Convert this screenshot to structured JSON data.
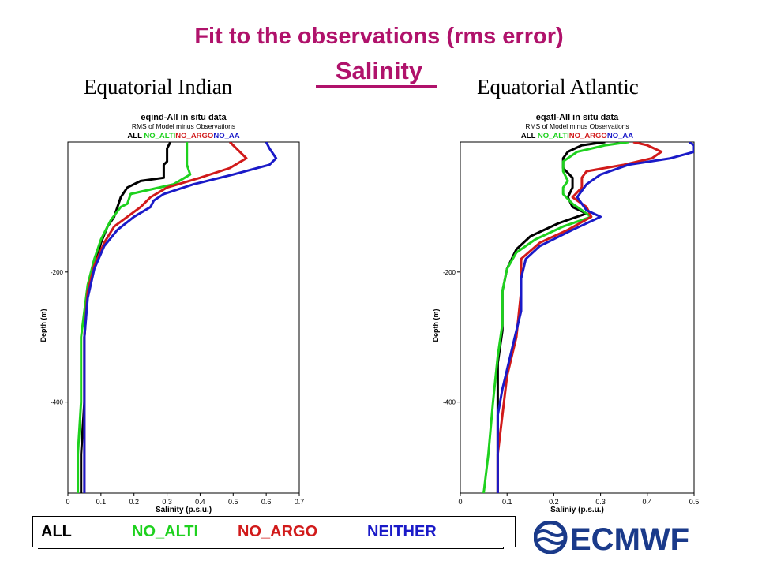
{
  "slide": {
    "title": "Fit to the observations (rms error)",
    "subtitle": "Salinity",
    "panel_titles": [
      "Equatorial Indian",
      "Equatorial Atlantic"
    ]
  },
  "legend": {
    "items": [
      {
        "label": "ALL",
        "color": "#000000"
      },
      {
        "label": "NO_ALTI",
        "color": "#1ed11e"
      },
      {
        "label": "NO_ARGO",
        "color": "#d11a1a"
      },
      {
        "label": "NEITHER",
        "color": "#1a1ac8"
      }
    ]
  },
  "logo": {
    "text": "ECMWF",
    "color": "#1a3a8a"
  },
  "colors": {
    "title": "#b0126b",
    "ALL": "#000000",
    "NO_ALTI": "#1ed11e",
    "NO_ARGO": "#d11a1a",
    "NO_AA": "#1a1ac8"
  },
  "chart_data": [
    {
      "type": "line",
      "title": "eqind-All in situ data",
      "subtitle": "RMS of Model minus Observations",
      "xlabel": "Salinity (p.s.u.)",
      "ylabel": "Depth (m)",
      "xlim": [
        0,
        0.7
      ],
      "ylim": [
        -540,
        0
      ],
      "xticks": [
        0,
        0.1,
        0.2,
        0.3,
        0.4,
        0.5,
        0.6,
        0.7
      ],
      "yticks": [
        -200,
        -400
      ],
      "legend_inline": [
        "ALL",
        "NO_ALTI",
        "NO_ARGO",
        "NO_AA"
      ],
      "series": [
        {
          "name": "ALL",
          "color": "#000000",
          "points": [
            [
              0.31,
              0
            ],
            [
              0.3,
              -10
            ],
            [
              0.3,
              -30
            ],
            [
              0.29,
              -35
            ],
            [
              0.29,
              -55
            ],
            [
              0.22,
              -60
            ],
            [
              0.18,
              -70
            ],
            [
              0.16,
              -85
            ],
            [
              0.15,
              -100
            ],
            [
              0.14,
              -115
            ],
            [
              0.12,
              -130
            ],
            [
              0.1,
              -155
            ],
            [
              0.08,
              -190
            ],
            [
              0.06,
              -230
            ],
            [
              0.05,
              -300
            ],
            [
              0.05,
              -400
            ],
            [
              0.04,
              -480
            ],
            [
              0.04,
              -540
            ]
          ]
        },
        {
          "name": "NO_ALTI",
          "color": "#1ed11e",
          "points": [
            [
              0.36,
              0
            ],
            [
              0.36,
              -10
            ],
            [
              0.36,
              -35
            ],
            [
              0.37,
              -50
            ],
            [
              0.32,
              -65
            ],
            [
              0.19,
              -80
            ],
            [
              0.18,
              -95
            ],
            [
              0.16,
              -100
            ],
            [
              0.13,
              -120
            ],
            [
              0.1,
              -150
            ],
            [
              0.08,
              -180
            ],
            [
              0.06,
              -220
            ],
            [
              0.04,
              -300
            ],
            [
              0.04,
              -400
            ],
            [
              0.03,
              -480
            ],
            [
              0.03,
              -540
            ]
          ]
        },
        {
          "name": "NO_ARGO",
          "color": "#d11a1a",
          "points": [
            [
              0.49,
              0
            ],
            [
              0.52,
              -15
            ],
            [
              0.54,
              -25
            ],
            [
              0.49,
              -40
            ],
            [
              0.4,
              -55
            ],
            [
              0.3,
              -70
            ],
            [
              0.25,
              -85
            ],
            [
              0.23,
              -95
            ],
            [
              0.22,
              -100
            ],
            [
              0.18,
              -115
            ],
            [
              0.14,
              -130
            ],
            [
              0.11,
              -155
            ],
            [
              0.08,
              -190
            ],
            [
              0.06,
              -230
            ],
            [
              0.05,
              -300
            ],
            [
              0.05,
              -400
            ],
            [
              0.05,
              -480
            ],
            [
              0.05,
              -540
            ]
          ]
        },
        {
          "name": "NO_AA",
          "color": "#1a1ac8",
          "points": [
            [
              0.6,
              0
            ],
            [
              0.61,
              -10
            ],
            [
              0.63,
              -25
            ],
            [
              0.61,
              -35
            ],
            [
              0.5,
              -50
            ],
            [
              0.38,
              -65
            ],
            [
              0.29,
              -80
            ],
            [
              0.26,
              -90
            ],
            [
              0.25,
              -100
            ],
            [
              0.2,
              -115
            ],
            [
              0.15,
              -135
            ],
            [
              0.11,
              -160
            ],
            [
              0.08,
              -195
            ],
            [
              0.06,
              -240
            ],
            [
              0.05,
              -300
            ],
            [
              0.05,
              -400
            ],
            [
              0.05,
              -480
            ],
            [
              0.05,
              -540
            ]
          ]
        }
      ]
    },
    {
      "type": "line",
      "title": "eqatl-All in situ data",
      "subtitle": "RMS of Model minus Observations",
      "xlabel": "Saliniy (p.s.u.)",
      "ylabel": "Depth (m)",
      "xlim": [
        0,
        0.5
      ],
      "ylim": [
        -540,
        0
      ],
      "xticks": [
        0,
        0.1,
        0.2,
        0.3,
        0.4,
        0.5
      ],
      "yticks": [
        -200,
        -400
      ],
      "legend_inline": [
        "ALL",
        "NO_ALTI",
        "NO_ARGO",
        "NO_AA"
      ],
      "series": [
        {
          "name": "ALL",
          "color": "#000000",
          "points": [
            [
              0.31,
              0
            ],
            [
              0.26,
              -5
            ],
            [
              0.23,
              -15
            ],
            [
              0.22,
              -25
            ],
            [
              0.22,
              -40
            ],
            [
              0.24,
              -55
            ],
            [
              0.24,
              -70
            ],
            [
              0.23,
              -85
            ],
            [
              0.24,
              -100
            ],
            [
              0.27,
              -110
            ],
            [
              0.21,
              -125
            ],
            [
              0.15,
              -145
            ],
            [
              0.12,
              -165
            ],
            [
              0.1,
              -195
            ],
            [
              0.09,
              -230
            ],
            [
              0.09,
              -290
            ],
            [
              0.08,
              -340
            ],
            [
              0.08,
              -400
            ],
            [
              0.08,
              -480
            ],
            [
              0.08,
              -540
            ]
          ]
        },
        {
          "name": "NO_ALTI",
          "color": "#1ed11e",
          "points": [
            [
              0.36,
              0
            ],
            [
              0.31,
              -5
            ],
            [
              0.25,
              -15
            ],
            [
              0.22,
              -30
            ],
            [
              0.22,
              -45
            ],
            [
              0.23,
              -60
            ],
            [
              0.22,
              -70
            ],
            [
              0.22,
              -80
            ],
            [
              0.24,
              -95
            ],
            [
              0.26,
              -105
            ],
            [
              0.28,
              -115
            ],
            [
              0.22,
              -130
            ],
            [
              0.16,
              -150
            ],
            [
              0.12,
              -170
            ],
            [
              0.1,
              -195
            ],
            [
              0.09,
              -230
            ],
            [
              0.09,
              -280
            ],
            [
              0.08,
              -330
            ],
            [
              0.07,
              -400
            ],
            [
              0.06,
              -480
            ],
            [
              0.05,
              -540
            ]
          ]
        },
        {
          "name": "NO_ARGO",
          "color": "#d11a1a",
          "points": [
            [
              0.37,
              0
            ],
            [
              0.4,
              -5
            ],
            [
              0.43,
              -15
            ],
            [
              0.41,
              -25
            ],
            [
              0.35,
              -35
            ],
            [
              0.27,
              -45
            ],
            [
              0.26,
              -55
            ],
            [
              0.26,
              -70
            ],
            [
              0.24,
              -85
            ],
            [
              0.27,
              -100
            ],
            [
              0.28,
              -115
            ],
            [
              0.23,
              -135
            ],
            [
              0.17,
              -155
            ],
            [
              0.13,
              -180
            ],
            [
              0.13,
              -210
            ],
            [
              0.13,
              -230
            ],
            [
              0.12,
              -300
            ],
            [
              0.1,
              -360
            ],
            [
              0.09,
              -420
            ],
            [
              0.08,
              -480
            ],
            [
              0.08,
              -540
            ]
          ]
        },
        {
          "name": "NO_AA",
          "color": "#1a1ac8",
          "points": [
            [
              0.49,
              0
            ],
            [
              0.5,
              -5
            ],
            [
              0.5,
              -15
            ],
            [
              0.45,
              -25
            ],
            [
              0.36,
              -35
            ],
            [
              0.3,
              -50
            ],
            [
              0.27,
              -65
            ],
            [
              0.25,
              -85
            ],
            [
              0.27,
              -105
            ],
            [
              0.3,
              -115
            ],
            [
              0.24,
              -135
            ],
            [
              0.17,
              -160
            ],
            [
              0.14,
              -180
            ],
            [
              0.13,
              -210
            ],
            [
              0.13,
              -260
            ],
            [
              0.11,
              -320
            ],
            [
              0.09,
              -380
            ],
            [
              0.08,
              -420
            ],
            [
              0.08,
              -480
            ],
            [
              0.08,
              -540
            ]
          ]
        }
      ]
    }
  ]
}
